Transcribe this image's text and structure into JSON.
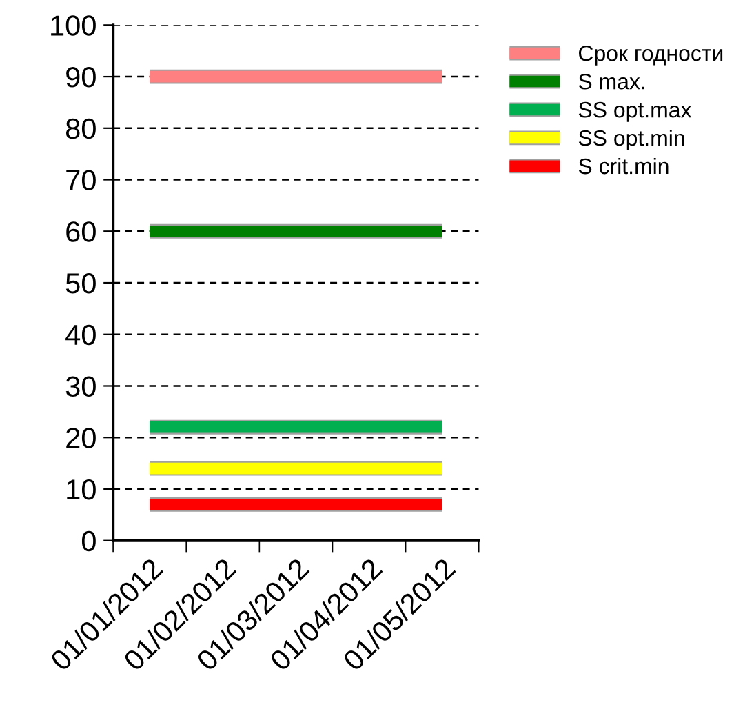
{
  "chart_data": {
    "type": "line",
    "categories": [
      "01/01/2012",
      "01/02/2012",
      "01/03/2012",
      "01/04/2012",
      "01/05/2012"
    ],
    "series": [
      {
        "name": "Срок годности",
        "color": "#ff8080",
        "values": [
          90,
          90,
          90,
          90,
          90
        ]
      },
      {
        "name": "S max.",
        "color": "#008000",
        "values": [
          60,
          60,
          60,
          60,
          60
        ]
      },
      {
        "name": "SS opt.max",
        "color": "#00b050",
        "values": [
          22,
          22,
          22,
          22,
          22
        ]
      },
      {
        "name": "SS opt.min",
        "color": "#ffff00",
        "values": [
          14,
          14,
          14,
          14,
          14
        ]
      },
      {
        "name": "S crit.min",
        "color": "#ff0000",
        "values": [
          7,
          7,
          7,
          7,
          7
        ]
      }
    ],
    "ylim": [
      0,
      100
    ],
    "yticks": [
      0,
      10,
      20,
      30,
      40,
      50,
      60,
      70,
      80,
      90,
      100
    ],
    "grid": "y",
    "legend": "top right",
    "marker": "none",
    "line_style": "solid"
  }
}
